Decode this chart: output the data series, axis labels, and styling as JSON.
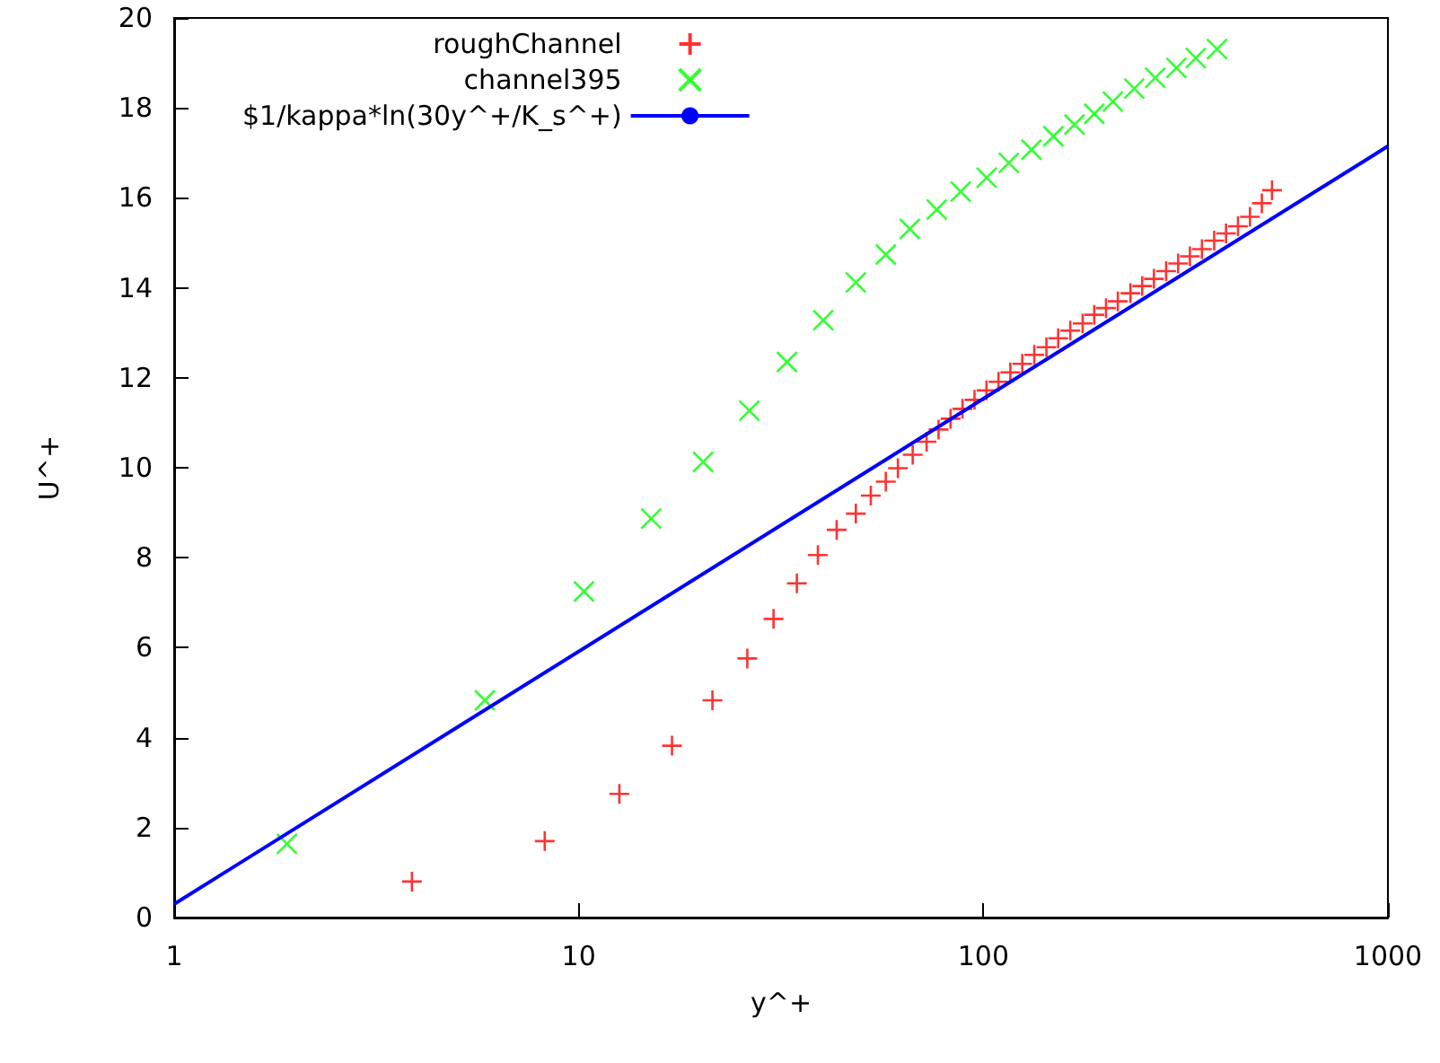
{
  "chart_data": {
    "type": "scatter",
    "xlabel": "y^+",
    "ylabel": "U^+",
    "log": "x",
    "xlim": [
      1,
      1000
    ],
    "xticks": [
      1,
      10,
      100,
      1000
    ],
    "ylim": [
      0,
      20
    ],
    "yticks": [
      0,
      2,
      4,
      6,
      8,
      10,
      12,
      14,
      16,
      18,
      20
    ],
    "grid": false,
    "legend": "top",
    "series": [
      {
        "name": "roughChannel",
        "color": "#ff0000",
        "marker": "plus",
        "x": [
          3.87,
          8.24,
          12.6,
          17.0,
          21.4,
          26.1,
          30.3,
          34.6,
          39.0,
          43.4,
          48.4,
          52.7,
          57.4,
          61.5,
          66.9,
          72.4,
          77.5,
          83.0,
          88.8,
          95.1,
          101.8,
          109,
          116.6,
          124.8,
          133.6,
          143.2,
          153.1,
          164,
          176,
          188,
          201,
          215,
          231,
          247,
          264,
          283,
          303,
          324,
          347,
          372,
          398,
          426,
          456,
          488,
          517
        ],
        "values": [
          0.8,
          1.7,
          2.75,
          3.82,
          4.83,
          5.76,
          6.64,
          7.43,
          8.06,
          8.62,
          8.98,
          9.38,
          9.69,
          9.99,
          10.29,
          10.58,
          10.85,
          11.09,
          11.31,
          11.51,
          11.72,
          11.91,
          12.12,
          12.31,
          12.51,
          12.68,
          12.88,
          13.05,
          13.21,
          13.4,
          13.55,
          13.7,
          13.88,
          14.04,
          14.2,
          14.37,
          14.54,
          14.7,
          14.86,
          15.05,
          15.21,
          15.37,
          15.58,
          15.88,
          16.17
        ]
      },
      {
        "name": "channel395",
        "color": "#00ff00",
        "marker": "cross",
        "x": [
          1.9,
          5.86,
          10.3,
          15.1,
          20.3,
          26.4,
          32.7,
          40.2,
          48.4,
          57.4,
          65.8,
          76.7,
          87.9,
          101.9,
          115.6,
          131.5,
          149,
          168,
          188,
          209,
          236,
          266,
          300,
          335,
          378
        ],
        "values": [
          1.64,
          4.83,
          7.25,
          8.87,
          10.13,
          11.27,
          12.35,
          13.28,
          14.12,
          14.74,
          15.31,
          15.74,
          16.14,
          16.45,
          16.78,
          17.07,
          17.37,
          17.63,
          17.87,
          18.14,
          18.43,
          18.67,
          18.89,
          19.11,
          19.31
        ]
      },
      {
        "name": "$1/kappa*ln(30y^+/K_s^+)",
        "type": "line",
        "color": "#0000ff",
        "marker": "none",
        "line_style": "solid",
        "x": [
          1,
          1000
        ],
        "values": [
          0.3,
          17.15
        ]
      }
    ]
  }
}
